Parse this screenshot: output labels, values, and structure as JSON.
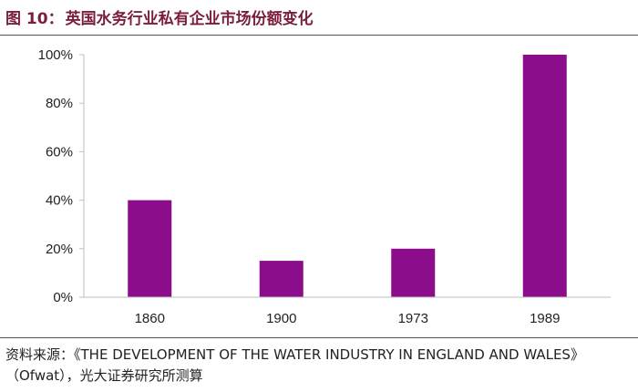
{
  "figure": {
    "label": "图 10：",
    "title": "英国水务行业私有企业市场份额变化"
  },
  "source_note": "资料来源：《THE DEVELOPMENT OF THE WATER INDUSTRY IN ENGLAND AND WALES》（Ofwat），光大证券研究所测算",
  "colors": {
    "bar": "#8b0d8c",
    "title": "#7a1e3a",
    "axis": "#bfbfbf"
  },
  "chart_data": {
    "type": "bar",
    "categories": [
      "1860",
      "1900",
      "1973",
      "1989"
    ],
    "values": [
      40,
      15,
      20,
      100
    ],
    "unit": "%",
    "ylim": [
      0,
      100
    ],
    "yticks": [
      0,
      20,
      40,
      60,
      80,
      100
    ],
    "ytick_labels": [
      "0%",
      "20%",
      "40%",
      "60%",
      "80%",
      "100%"
    ],
    "grid": false,
    "legend": "none"
  }
}
